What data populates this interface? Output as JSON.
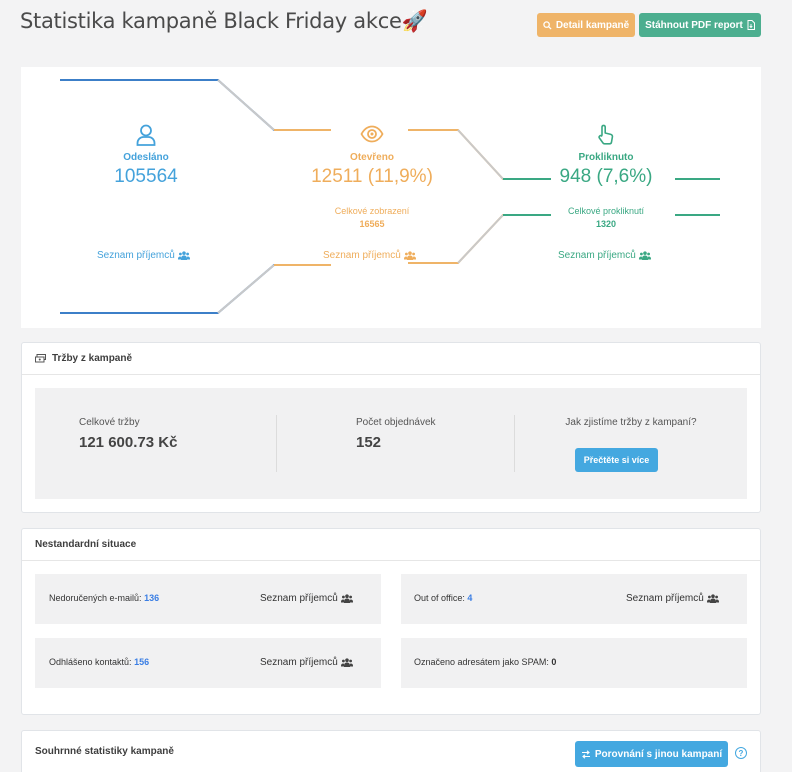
{
  "header": {
    "title": "Statistika kampaně Black Friday akce🚀",
    "detail_label": "Detail kampaně",
    "pdf_label": "Stáhnout PDF report"
  },
  "funnel": {
    "sent": {
      "label": "Odesláno",
      "value": "105564",
      "recipients": "Seznam příjemců",
      "color": "#44a2db"
    },
    "opened": {
      "label": "Otevřeno",
      "value": "12511 (11,9%)",
      "sub_label": "Celkové zobrazení",
      "sub_value": "16565",
      "recipients": "Seznam příjemců",
      "color": "#efad5b"
    },
    "clicked": {
      "label": "Prokliknuto",
      "value": "948 (7,6%)",
      "sub_label": "Celkové prokliknutí",
      "sub_value": "1320",
      "recipients": "Seznam příjemců",
      "color": "#3aa883"
    }
  },
  "revenue": {
    "title": "Tržby z kampaně",
    "total_label": "Celkové tržby",
    "total_value": "121 600.73 Kč",
    "orders_label": "Počet objednávek",
    "orders_value": "152",
    "howto_label": "Jak zjistíme tržby z kampaní?",
    "more_label": "Přečtěte si více"
  },
  "situations": {
    "title": "Nestandardní situace",
    "undelivered_label": "Nedoručených e-mailů:",
    "undelivered_value": "136",
    "ooo_label": "Out of office:",
    "ooo_value": "4",
    "unsub_label": "Odhlášeno kontaktů:",
    "unsub_value": "156",
    "spam_label": "Označeno adresátem jako SPAM:",
    "spam_value": "0",
    "recipients": "Seznam příjemců"
  },
  "summary": {
    "title": "Souhrnné statistiky kampaně",
    "compare_label": "Porovnání s jinou kampaní",
    "help_icon": "?"
  }
}
